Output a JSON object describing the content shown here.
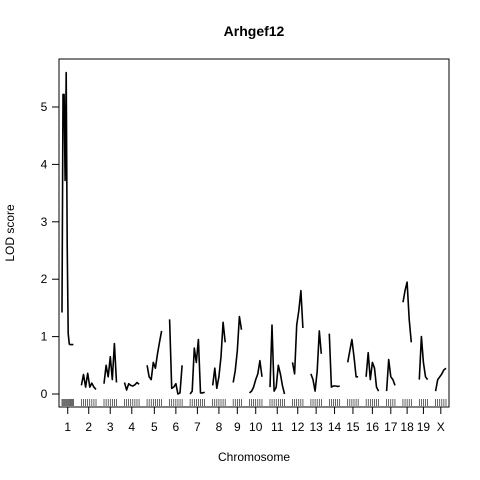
{
  "chart_data": {
    "type": "line",
    "title": "Arhgef12",
    "xlabel": "Chromosome",
    "ylabel": "LOD score",
    "ylim": [
      0,
      5.8
    ],
    "yticks": [
      0,
      1,
      2,
      3,
      4,
      5
    ],
    "grid": false,
    "legend": "none",
    "line_color": "#000000",
    "chromosomes": [
      {
        "label": "1",
        "pos": [
          0,
          5,
          10,
          15,
          20,
          25,
          30,
          35,
          40,
          45,
          50,
          55
        ],
        "lod": [
          1.42,
          5.22,
          5.22,
          3.72,
          5.6,
          2.6,
          1.05,
          0.87,
          0.86,
          0.86,
          0.86,
          0.86
        ]
      },
      {
        "label": "2",
        "pos": [
          0,
          10,
          20,
          30,
          40,
          50,
          60,
          70
        ],
        "lod": [
          0.15,
          0.34,
          0.12,
          0.36,
          0.12,
          0.19,
          0.12,
          0.08
        ]
      },
      {
        "label": "3",
        "pos": [
          0,
          10,
          20,
          30,
          40,
          50,
          60
        ],
        "lod": [
          0.18,
          0.5,
          0.3,
          0.65,
          0.25,
          0.88,
          0.2
        ]
      },
      {
        "label": "4",
        "pos": [
          0,
          10,
          20,
          30,
          40,
          50,
          60,
          70
        ],
        "lod": [
          0.2,
          0.07,
          0.18,
          0.15,
          0.14,
          0.16,
          0.2,
          0.17
        ]
      },
      {
        "label": "5",
        "pos": [
          0,
          10,
          20,
          30,
          40,
          50,
          60,
          70
        ],
        "lod": [
          0.5,
          0.3,
          0.25,
          0.55,
          0.45,
          0.7,
          0.9,
          1.1
        ]
      },
      {
        "label": "6",
        "pos": [
          0,
          10,
          20,
          30,
          40,
          50,
          60
        ],
        "lod": [
          1.3,
          0.1,
          0.12,
          0.18,
          0.0,
          0.02,
          0.5
        ]
      },
      {
        "label": "7",
        "pos": [
          0,
          10,
          20,
          30,
          40,
          50,
          60,
          70
        ],
        "lod": [
          0.0,
          0.05,
          0.8,
          0.55,
          0.95,
          0.02,
          0.02,
          0.03
        ]
      },
      {
        "label": "8",
        "pos": [
          0,
          10,
          20,
          30,
          40,
          50,
          60
        ],
        "lod": [
          0.15,
          0.45,
          0.1,
          0.3,
          0.65,
          1.25,
          0.9
        ]
      },
      {
        "label": "9",
        "pos": [
          0,
          10,
          20,
          30,
          40
        ],
        "lod": [
          0.2,
          0.4,
          0.75,
          1.35,
          1.12
        ]
      },
      {
        "label": "10",
        "pos": [
          0,
          10,
          20,
          30,
          40,
          50,
          60
        ],
        "lod": [
          0.02,
          0.05,
          0.12,
          0.25,
          0.35,
          0.58,
          0.3
        ]
      },
      {
        "label": "11",
        "pos": [
          0,
          10,
          20,
          30,
          40,
          50,
          60,
          70
        ],
        "lod": [
          0.12,
          1.2,
          0.05,
          0.12,
          0.5,
          0.35,
          0.15,
          0.0
        ]
      },
      {
        "label": "12",
        "pos": [
          0,
          10,
          20,
          30,
          40,
          50
        ],
        "lod": [
          0.55,
          0.35,
          1.2,
          1.45,
          1.8,
          1.15
        ]
      },
      {
        "label": "13",
        "pos": [
          0,
          10,
          20,
          30,
          40,
          50
        ],
        "lod": [
          0.35,
          0.25,
          0.05,
          0.4,
          1.1,
          0.7
        ]
      },
      {
        "label": "14",
        "pos": [
          0,
          10,
          20,
          30,
          40,
          50
        ],
        "lod": [
          1.05,
          0.12,
          0.14,
          0.14,
          0.13,
          0.14
        ]
      },
      {
        "label": "15",
        "pos": [
          0,
          10,
          20,
          30,
          40,
          50
        ],
        "lod": [
          0.55,
          0.75,
          0.95,
          0.65,
          0.3,
          0.3
        ]
      },
      {
        "label": "16",
        "pos": [
          0,
          10,
          20,
          30,
          40,
          50,
          60
        ],
        "lod": [
          0.3,
          0.72,
          0.25,
          0.55,
          0.45,
          0.12,
          0.05
        ]
      },
      {
        "label": "17",
        "pos": [
          0,
          10,
          20,
          30,
          40
        ],
        "lod": [
          0.05,
          0.6,
          0.3,
          0.25,
          0.15
        ]
      },
      {
        "label": "18",
        "pos": [
          0,
          10,
          20,
          30,
          40
        ],
        "lod": [
          1.6,
          1.8,
          1.95,
          1.3,
          0.9
        ]
      },
      {
        "label": "19",
        "pos": [
          0,
          10,
          20,
          30,
          40
        ],
        "lod": [
          0.25,
          1.0,
          0.55,
          0.3,
          0.25
        ]
      },
      {
        "label": "X",
        "pos": [
          0,
          10,
          20,
          30,
          40,
          50
        ],
        "lod": [
          0.05,
          0.25,
          0.3,
          0.35,
          0.42,
          0.45
        ]
      }
    ]
  }
}
